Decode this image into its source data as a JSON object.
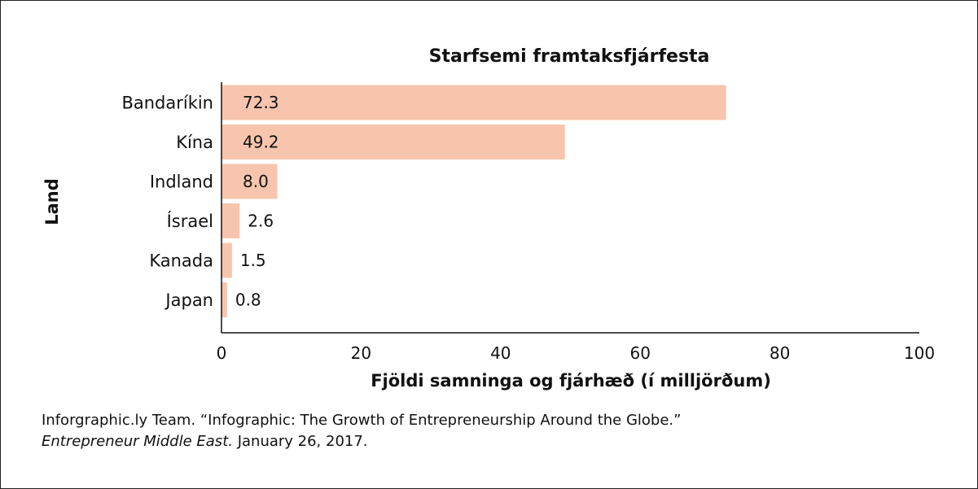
{
  "chart_data": {
    "type": "bar",
    "orientation": "horizontal",
    "title": "Starfsemi framtaksfjárfesta",
    "xlabel": "Fjöldi samninga og fjárhæð (í milljörðum)",
    "ylabel": "Land",
    "categories": [
      "Bandaríkin",
      "Kína",
      "Indland",
      "Ísrael",
      "Kanada",
      "Japan"
    ],
    "values": [
      72.3,
      49.2,
      8.0,
      2.6,
      1.5,
      0.8
    ],
    "value_labels": [
      "72.3",
      "49.2",
      "8.0",
      "2.6",
      "1.5",
      "0.8"
    ],
    "xlim": [
      0,
      100
    ],
    "xticks": [
      "0",
      "20",
      "40",
      "60",
      "80",
      "100"
    ],
    "grid": false,
    "bar_color": "#f7c5ad"
  },
  "source": {
    "line1": "Inforgraphic.ly Team. “Infographic: The Growth of Entrepreneurship Around the Globe.”",
    "publication": "Entrepreneur Middle East.",
    "date": " January 26, 2017."
  }
}
